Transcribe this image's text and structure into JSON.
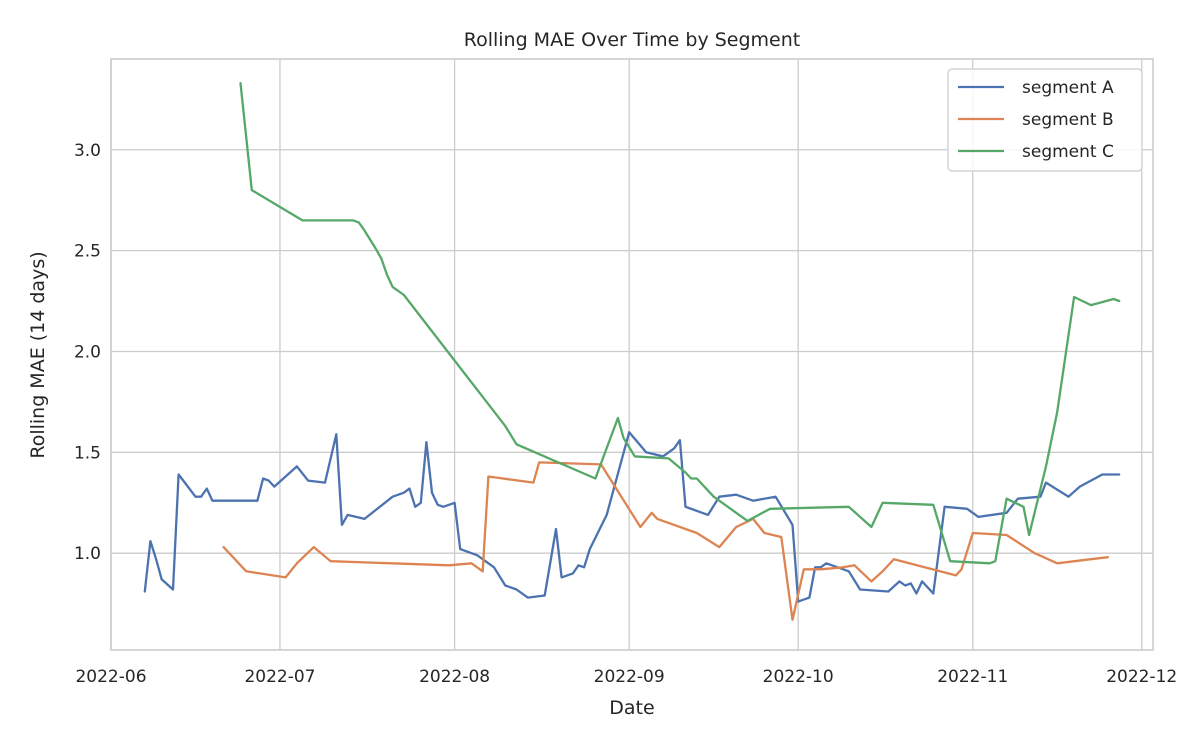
{
  "chart_data": {
    "type": "line",
    "title": "Rolling MAE Over Time by Segment",
    "xlabel": "Date",
    "ylabel": "Rolling MAE (14 days)",
    "x_axis_type": "date",
    "xlim": [
      "2022-06-01",
      "2022-12-03"
    ],
    "ylim": [
      0.52,
      3.45
    ],
    "x_ticks": [
      "2022-06-01",
      "2022-07-01",
      "2022-08-01",
      "2022-09-01",
      "2022-10-01",
      "2022-11-01",
      "2022-12-01"
    ],
    "x_tick_labels": [
      "2022-06",
      "2022-07",
      "2022-08",
      "2022-09",
      "2022-10",
      "2022-11",
      "2022-12"
    ],
    "y_ticks": [
      1.0,
      1.5,
      2.0,
      2.5,
      3.0
    ],
    "y_tick_labels": [
      "1.0",
      "1.5",
      "2.0",
      "2.5",
      "3.0"
    ],
    "grid": true,
    "legend_position": "top-right",
    "series": [
      {
        "name": "segment A",
        "color": "#4c72b0",
        "points": [
          [
            "2022-06-07",
            0.81
          ],
          [
            "2022-06-08",
            1.06
          ],
          [
            "2022-06-09",
            0.97
          ],
          [
            "2022-06-10",
            0.87
          ],
          [
            "2022-06-12",
            0.82
          ],
          [
            "2022-06-13",
            1.39
          ],
          [
            "2022-06-16",
            1.28
          ],
          [
            "2022-06-17",
            1.28
          ],
          [
            "2022-06-18",
            1.32
          ],
          [
            "2022-06-19",
            1.26
          ],
          [
            "2022-06-27",
            1.26
          ],
          [
            "2022-06-28",
            1.37
          ],
          [
            "2022-06-29",
            1.36
          ],
          [
            "2022-06-30",
            1.33
          ],
          [
            "2022-07-04",
            1.43
          ],
          [
            "2022-07-06",
            1.36
          ],
          [
            "2022-07-09",
            1.35
          ],
          [
            "2022-07-11",
            1.59
          ],
          [
            "2022-07-12",
            1.14
          ],
          [
            "2022-07-13",
            1.19
          ],
          [
            "2022-07-16",
            1.17
          ],
          [
            "2022-07-21",
            1.28
          ],
          [
            "2022-07-23",
            1.3
          ],
          [
            "2022-07-24",
            1.32
          ],
          [
            "2022-07-25",
            1.23
          ],
          [
            "2022-07-26",
            1.25
          ],
          [
            "2022-07-27",
            1.55
          ],
          [
            "2022-07-28",
            1.3
          ],
          [
            "2022-07-29",
            1.24
          ],
          [
            "2022-07-30",
            1.23
          ],
          [
            "2022-08-01",
            1.25
          ],
          [
            "2022-08-02",
            1.02
          ],
          [
            "2022-08-05",
            0.99
          ],
          [
            "2022-08-06",
            0.97
          ],
          [
            "2022-08-08",
            0.93
          ],
          [
            "2022-08-10",
            0.84
          ],
          [
            "2022-08-12",
            0.82
          ],
          [
            "2022-08-14",
            0.78
          ],
          [
            "2022-08-17",
            0.79
          ],
          [
            "2022-08-19",
            1.12
          ],
          [
            "2022-08-20",
            0.88
          ],
          [
            "2022-08-21",
            0.89
          ],
          [
            "2022-08-22",
            0.9
          ],
          [
            "2022-08-23",
            0.94
          ],
          [
            "2022-08-24",
            0.93
          ],
          [
            "2022-08-25",
            1.02
          ],
          [
            "2022-08-28",
            1.19
          ],
          [
            "2022-09-01",
            1.6
          ],
          [
            "2022-09-04",
            1.5
          ],
          [
            "2022-09-07",
            1.48
          ],
          [
            "2022-09-09",
            1.52
          ],
          [
            "2022-09-10",
            1.56
          ],
          [
            "2022-09-11",
            1.23
          ],
          [
            "2022-09-15",
            1.19
          ],
          [
            "2022-09-17",
            1.28
          ],
          [
            "2022-09-20",
            1.29
          ],
          [
            "2022-09-23",
            1.26
          ],
          [
            "2022-09-27",
            1.28
          ],
          [
            "2022-09-30",
            1.14
          ],
          [
            "2022-10-01",
            0.76
          ],
          [
            "2022-10-03",
            0.78
          ],
          [
            "2022-10-04",
            0.93
          ],
          [
            "2022-10-05",
            0.93
          ],
          [
            "2022-10-06",
            0.95
          ],
          [
            "2022-10-08",
            0.93
          ],
          [
            "2022-10-10",
            0.91
          ],
          [
            "2022-10-12",
            0.82
          ],
          [
            "2022-10-17",
            0.81
          ],
          [
            "2022-10-19",
            0.86
          ],
          [
            "2022-10-20",
            0.84
          ],
          [
            "2022-10-21",
            0.85
          ],
          [
            "2022-10-22",
            0.8
          ],
          [
            "2022-10-23",
            0.86
          ],
          [
            "2022-10-25",
            0.8
          ],
          [
            "2022-10-27",
            1.23
          ],
          [
            "2022-10-31",
            1.22
          ],
          [
            "2022-11-02",
            1.18
          ],
          [
            "2022-11-07",
            1.2
          ],
          [
            "2022-11-09",
            1.27
          ],
          [
            "2022-11-13",
            1.28
          ],
          [
            "2022-11-14",
            1.35
          ],
          [
            "2022-11-18",
            1.28
          ],
          [
            "2022-11-20",
            1.33
          ],
          [
            "2022-11-24",
            1.39
          ],
          [
            "2022-11-27",
            1.39
          ]
        ]
      },
      {
        "name": "segment B",
        "color": "#dd8452",
        "points": [
          [
            "2022-06-21",
            1.03
          ],
          [
            "2022-06-25",
            0.91
          ],
          [
            "2022-07-02",
            0.88
          ],
          [
            "2022-07-04",
            0.95
          ],
          [
            "2022-07-07",
            1.03
          ],
          [
            "2022-07-10",
            0.96
          ],
          [
            "2022-07-31",
            0.94
          ],
          [
            "2022-08-04",
            0.95
          ],
          [
            "2022-08-06",
            0.91
          ],
          [
            "2022-08-07",
            1.38
          ],
          [
            "2022-08-15",
            1.35
          ],
          [
            "2022-08-16",
            1.45
          ],
          [
            "2022-08-27",
            1.44
          ],
          [
            "2022-09-03",
            1.13
          ],
          [
            "2022-09-05",
            1.2
          ],
          [
            "2022-09-06",
            1.17
          ],
          [
            "2022-09-13",
            1.1
          ],
          [
            "2022-09-17",
            1.03
          ],
          [
            "2022-09-20",
            1.13
          ],
          [
            "2022-09-23",
            1.17
          ],
          [
            "2022-09-25",
            1.1
          ],
          [
            "2022-09-28",
            1.08
          ],
          [
            "2022-09-30",
            0.67
          ],
          [
            "2022-10-02",
            0.92
          ],
          [
            "2022-10-03",
            0.92
          ],
          [
            "2022-10-05",
            0.92
          ],
          [
            "2022-10-09",
            0.93
          ],
          [
            "2022-10-11",
            0.94
          ],
          [
            "2022-10-14",
            0.86
          ],
          [
            "2022-10-16",
            0.91
          ],
          [
            "2022-10-18",
            0.97
          ],
          [
            "2022-10-29",
            0.89
          ],
          [
            "2022-10-30",
            0.92
          ],
          [
            "2022-11-01",
            1.1
          ],
          [
            "2022-11-07",
            1.09
          ],
          [
            "2022-11-12",
            1.0
          ],
          [
            "2022-11-16",
            0.95
          ],
          [
            "2022-11-22",
            0.97
          ],
          [
            "2022-11-25",
            0.98
          ]
        ]
      },
      {
        "name": "segment C",
        "color": "#55a868",
        "points": [
          [
            "2022-06-24",
            3.33
          ],
          [
            "2022-06-26",
            2.8
          ],
          [
            "2022-07-05",
            2.65
          ],
          [
            "2022-07-11",
            2.65
          ],
          [
            "2022-07-14",
            2.65
          ],
          [
            "2022-07-15",
            2.64
          ],
          [
            "2022-07-16",
            2.6
          ],
          [
            "2022-07-18",
            2.51
          ],
          [
            "2022-07-19",
            2.46
          ],
          [
            "2022-07-20",
            2.38
          ],
          [
            "2022-07-21",
            2.32
          ],
          [
            "2022-07-23",
            2.28
          ],
          [
            "2022-08-10",
            1.63
          ],
          [
            "2022-08-12",
            1.54
          ],
          [
            "2022-08-26",
            1.37
          ],
          [
            "2022-08-30",
            1.67
          ],
          [
            "2022-08-31",
            1.57
          ],
          [
            "2022-09-02",
            1.48
          ],
          [
            "2022-09-08",
            1.47
          ],
          [
            "2022-09-11",
            1.4
          ],
          [
            "2022-09-12",
            1.37
          ],
          [
            "2022-09-13",
            1.37
          ],
          [
            "2022-09-16",
            1.28
          ],
          [
            "2022-09-19",
            1.22
          ],
          [
            "2022-09-22",
            1.16
          ],
          [
            "2022-09-26",
            1.22
          ],
          [
            "2022-10-10",
            1.23
          ],
          [
            "2022-10-14",
            1.13
          ],
          [
            "2022-10-16",
            1.25
          ],
          [
            "2022-10-25",
            1.24
          ],
          [
            "2022-10-28",
            0.96
          ],
          [
            "2022-11-04",
            0.95
          ],
          [
            "2022-11-05",
            0.96
          ],
          [
            "2022-11-07",
            1.27
          ],
          [
            "2022-11-10",
            1.23
          ],
          [
            "2022-11-11",
            1.09
          ],
          [
            "2022-11-14",
            1.43
          ],
          [
            "2022-11-16",
            1.7
          ],
          [
            "2022-11-19",
            2.27
          ],
          [
            "2022-11-22",
            2.23
          ],
          [
            "2022-11-26",
            2.26
          ],
          [
            "2022-11-27",
            2.25
          ]
        ]
      }
    ]
  }
}
